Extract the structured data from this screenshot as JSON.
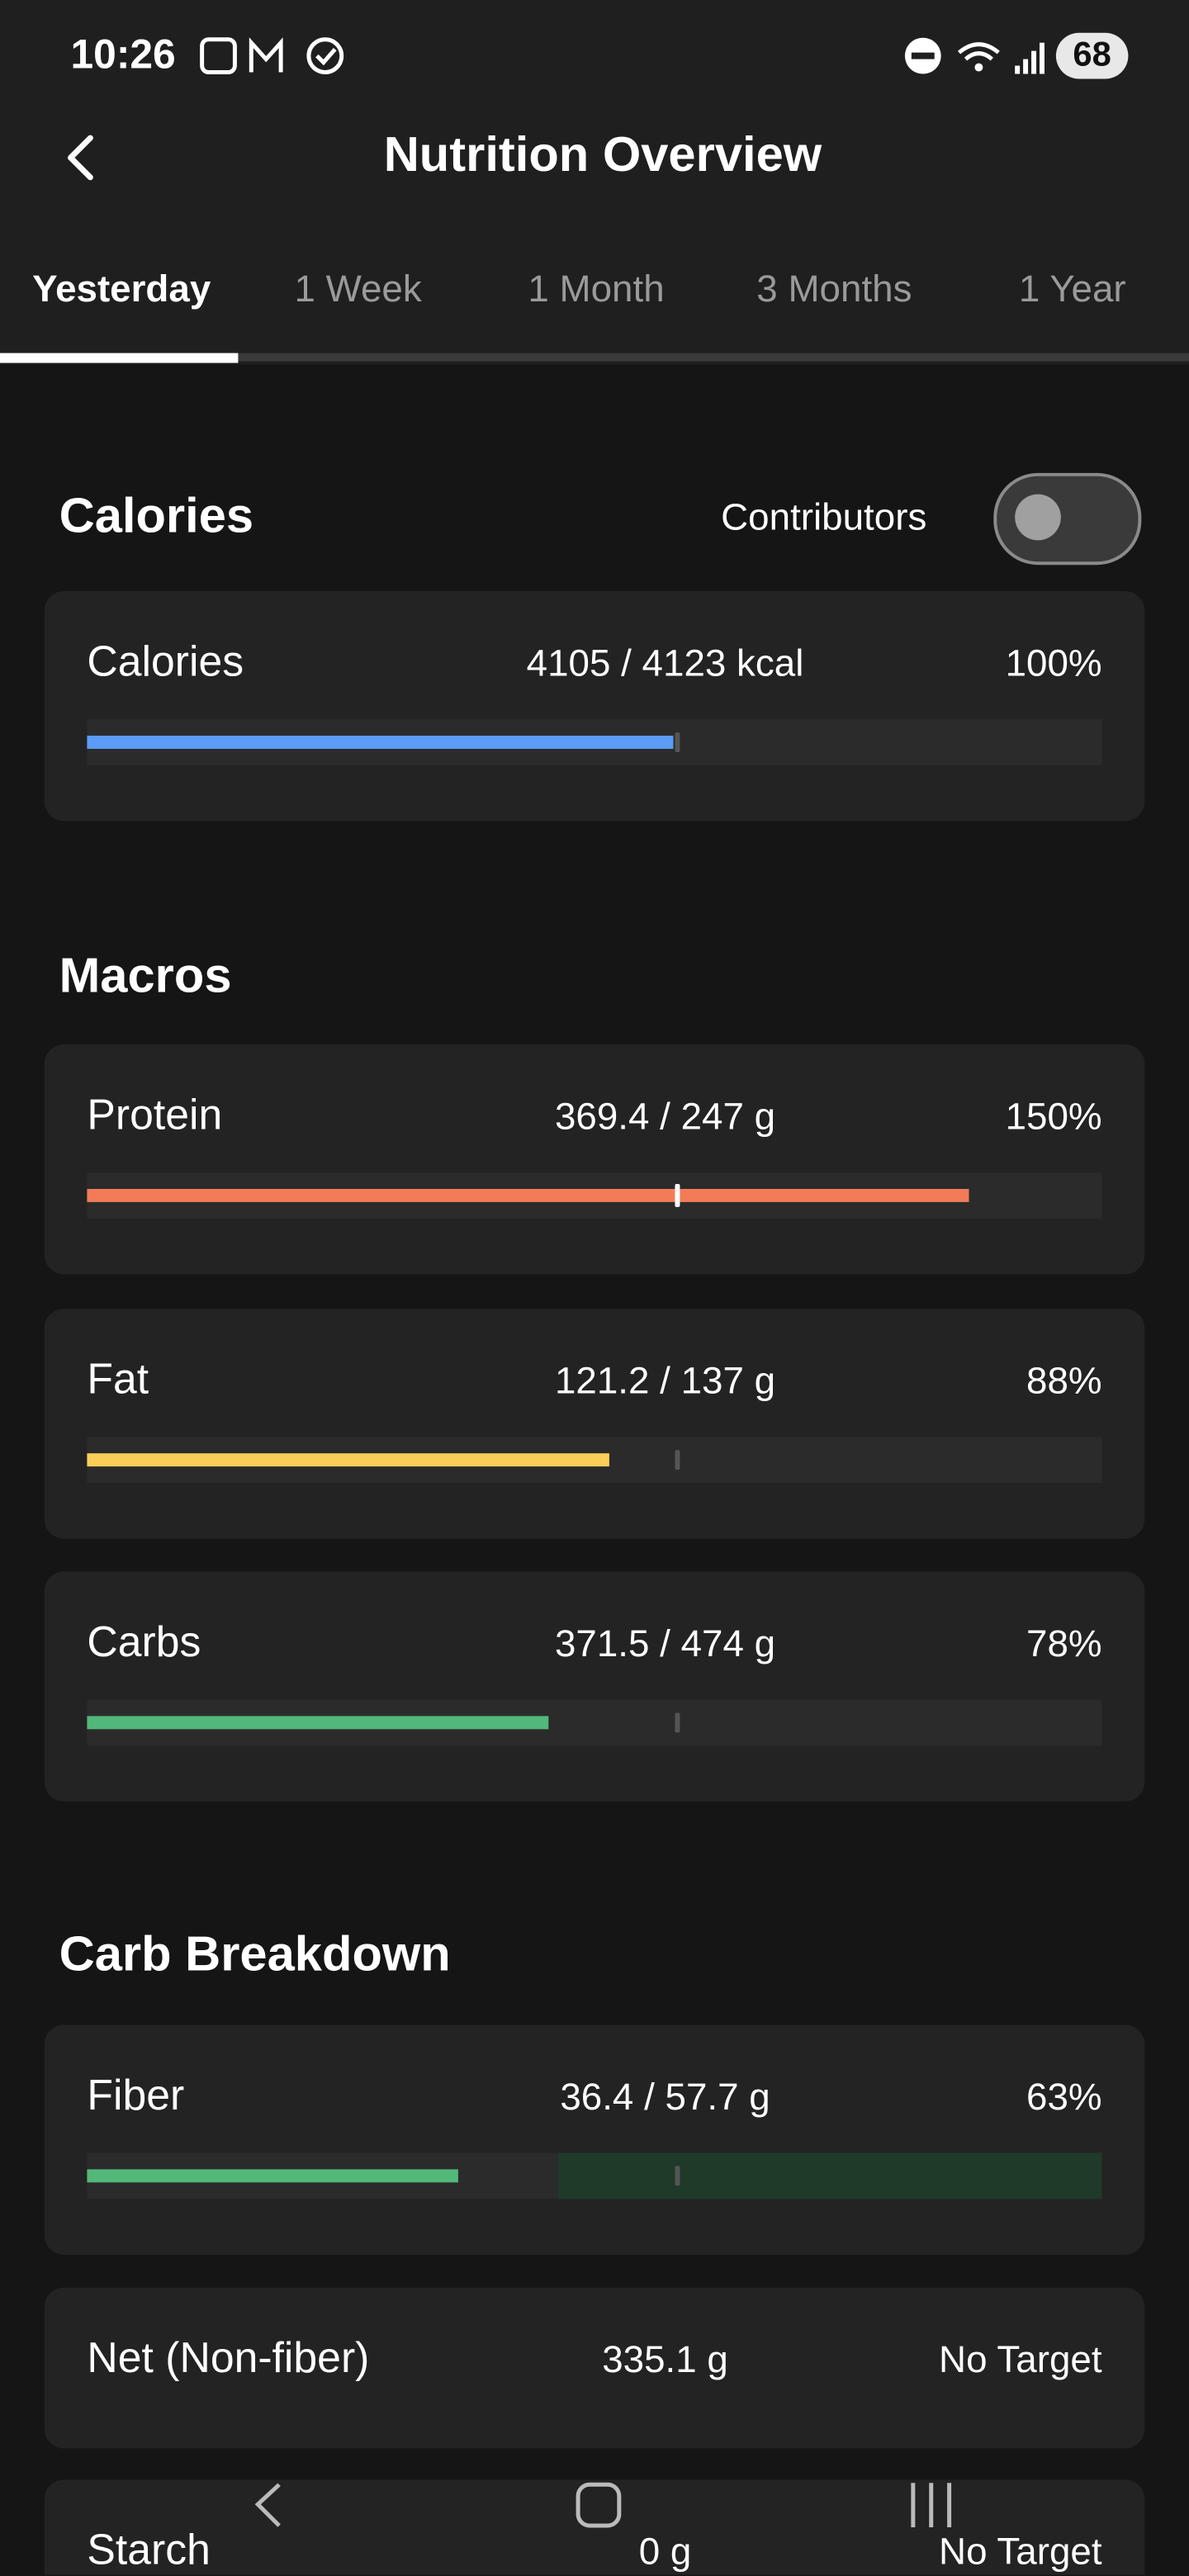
{
  "status_bar": {
    "time": "10:26",
    "battery": "68"
  },
  "header": {
    "title": "Nutrition Overview"
  },
  "tabs": [
    "Yesterday",
    "1 Week",
    "1 Month",
    "3 Months",
    "1 Year"
  ],
  "sections": [
    {
      "title": "Calories",
      "toggle_label": "Contributors",
      "rows": [
        {
          "name": "Calories",
          "amount": 4105,
          "target": 4123,
          "amount_label": "4105 / 4123 kcal",
          "percent_label": "100%",
          "color": "#5b9cf6"
        }
      ]
    },
    {
      "title": "Macros",
      "rows": [
        {
          "name": "Protein",
          "amount": 369.4,
          "target": 247,
          "amount_label": "369.4 / 247 g",
          "percent_label": "150%",
          "color": "#f47b58"
        },
        {
          "name": "Fat",
          "amount": 121.2,
          "target": 137,
          "amount_label": "121.2 / 137 g",
          "percent_label": "88%",
          "color": "#f9cf5a"
        },
        {
          "name": "Carbs",
          "amount": 371.5,
          "target": 474,
          "amount_label": "371.5 / 474 g",
          "percent_label": "78%",
          "color": "#52b87a"
        }
      ]
    },
    {
      "title": "Carb Breakdown",
      "rows": [
        {
          "name": "Fiber",
          "amount": 36.4,
          "target": 57.7,
          "amount_label": "36.4 / 57.7 g",
          "percent_label": "63%",
          "color": "#52b87a"
        },
        {
          "name": "Net (Non-fiber)",
          "amount_label": "335.1 g",
          "percent_label": "No Target"
        },
        {
          "name": "Starch",
          "amount_label": "0 g",
          "percent_label": "No Target"
        }
      ]
    }
  ]
}
